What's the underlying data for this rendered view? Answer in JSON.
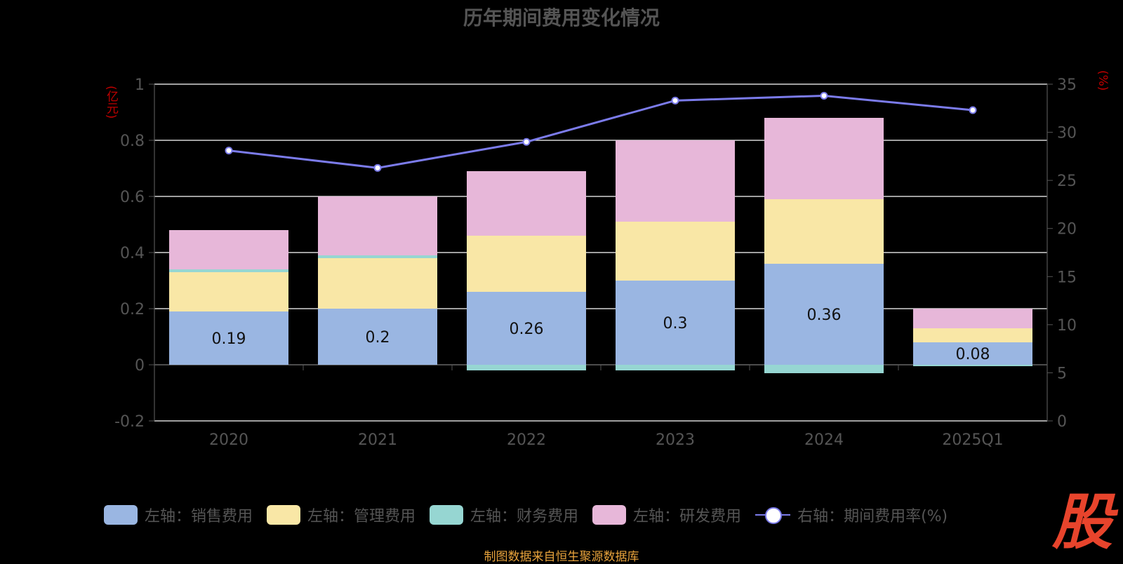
{
  "title": "历年期间费用变化情况",
  "source": "制图数据来自恒生聚源数据库",
  "brand_glyph": "股",
  "units": {
    "left": "(亿元)",
    "right": "(%)"
  },
  "legend": [
    {
      "label": "左轴：销售费用",
      "color": "#9ab6e2",
      "kind": "bar"
    },
    {
      "label": "左轴：管理费用",
      "color": "#f9e7a6",
      "kind": "bar"
    },
    {
      "label": "左轴：财务费用",
      "color": "#96d6d2",
      "kind": "bar"
    },
    {
      "label": "左轴：研发费用",
      "color": "#e7b7d9",
      "kind": "bar"
    },
    {
      "label": "右轴：期间费用率(%)",
      "color": "#7b7bea",
      "kind": "line"
    }
  ],
  "chart_data": {
    "type": "bar",
    "stacked": true,
    "categories": [
      "2020",
      "2021",
      "2022",
      "2023",
      "2024",
      "2025Q1"
    ],
    "left_axis": {
      "ylim": [
        -0.2,
        1
      ],
      "ticks": [
        -0.2,
        0,
        0.2,
        0.4,
        0.6,
        0.8,
        1
      ],
      "tick_labels": [
        "-0.2",
        "0",
        "0.2",
        "0.4",
        "0.6",
        "0.8",
        "1"
      ]
    },
    "right_axis": {
      "ylim": [
        0,
        35
      ],
      "ticks": [
        0,
        5,
        10,
        15,
        20,
        25,
        30,
        35
      ]
    },
    "series": [
      {
        "name": "左轴：销售费用",
        "axis": "left",
        "color": "#9ab6e2",
        "values": [
          0.19,
          0.2,
          0.26,
          0.3,
          0.36,
          0.08
        ],
        "show_labels": true
      },
      {
        "name": "左轴：管理费用",
        "axis": "left",
        "color": "#f9e7a6",
        "values": [
          0.14,
          0.18,
          0.2,
          0.21,
          0.23,
          0.05
        ]
      },
      {
        "name": "左轴：财务费用",
        "axis": "left",
        "color": "#96d6d2",
        "values": [
          0.01,
          0.01,
          -0.02,
          -0.02,
          -0.03,
          -0.005
        ]
      },
      {
        "name": "左轴：研发费用",
        "axis": "left",
        "color": "#e7b7d9",
        "values": [
          0.14,
          0.21,
          0.23,
          0.29,
          0.29,
          0.07
        ]
      }
    ],
    "line_series": {
      "name": "右轴：期间费用率(%)",
      "axis": "right",
      "color": "#7b7bea",
      "values": [
        28.1,
        26.3,
        29.0,
        33.3,
        33.8,
        32.3
      ]
    },
    "grid": true,
    "legend_position": "bottom"
  }
}
